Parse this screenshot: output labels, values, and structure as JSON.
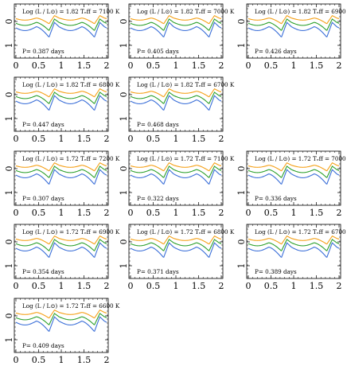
{
  "figure": {
    "series_colors": [
      "#f5a21b",
      "#2ca02c",
      "#3b6fd8"
    ],
    "tick_color": "#000000"
  },
  "chart_data": [
    {
      "type": "line",
      "title": "Log (L / L⊙) = 1.82 Tₑff = 7100 K",
      "period_label": "P= 0.387 days",
      "xlim": [
        0,
        2
      ],
      "xticks": [
        "0",
        "0.5",
        "1",
        "1.5",
        "2"
      ],
      "ylim_inverted": true,
      "yticks": [
        "0",
        "1"
      ]
    },
    {
      "type": "line",
      "title": "Log (L / L⊙) = 1.82 Tₑff = 7000 K",
      "period_label": "P= 0.405 days",
      "xlim": [
        0,
        2
      ],
      "xticks": [
        "0",
        "0.5",
        "1",
        "1.5",
        "2"
      ],
      "ylim_inverted": true,
      "yticks": [
        "0",
        "1"
      ]
    },
    {
      "type": "line",
      "title": "Log (L / L⊙) = 1.82 Tₑff = 6900 K",
      "period_label": "P= 0.426 days",
      "xlim": [
        0,
        2
      ],
      "xticks": [
        "0",
        "0.5",
        "1",
        "1.5",
        "2"
      ],
      "ylim_inverted": true,
      "yticks": [
        "0",
        "1"
      ]
    },
    {
      "type": "line",
      "title": "Log (L / L⊙) = 1.82 Tₑff = 6800 K",
      "period_label": "P= 0.447 days",
      "xlim": [
        0,
        2
      ],
      "xticks": [
        "0",
        "0.5",
        "1",
        "1.5",
        "2"
      ],
      "ylim_inverted": true,
      "yticks": [
        "0",
        "1"
      ]
    },
    {
      "type": "line",
      "title": "Log (L / L⊙) = 1.82 Tₑff = 6700 K",
      "period_label": "P= 0.468 days",
      "xlim": [
        0,
        2
      ],
      "xticks": [
        "0",
        "0.5",
        "1",
        "1.5",
        "2"
      ],
      "ylim_inverted": true,
      "yticks": [
        "0",
        "1"
      ]
    },
    {
      "type": "line",
      "title": "Log (L / L⊙) = 1.72 Tₑff = 7200 K",
      "period_label": "P= 0.307 days",
      "xlim": [
        0,
        2
      ],
      "xticks": [
        "0",
        "0.5",
        "1",
        "1.5",
        "2"
      ],
      "ylim_inverted": true,
      "yticks": [
        "0",
        "1"
      ]
    },
    {
      "type": "line",
      "title": "Log (L / L⊙) = 1.72 Tₑff = 7100 K",
      "period_label": "P= 0.322 days",
      "xlim": [
        0,
        2
      ],
      "xticks": [
        "0",
        "0.5",
        "1",
        "1.5",
        "2"
      ],
      "ylim_inverted": true,
      "yticks": [
        "0",
        "1"
      ]
    },
    {
      "type": "line",
      "title": "Log (L / L⊙) = 1.72 Tₑff = 7000 K",
      "period_label": "P= 0.336 days",
      "xlim": [
        0,
        2
      ],
      "xticks": [
        "0",
        "0.5",
        "1",
        "1.5",
        "2"
      ],
      "ylim_inverted": true,
      "yticks": [
        "0",
        "1"
      ]
    },
    {
      "type": "line",
      "title": "Log (L / L⊙) = 1.72 Tₑff = 6900 K",
      "period_label": "P= 0.354 days",
      "xlim": [
        0,
        2
      ],
      "xticks": [
        "0",
        "0.5",
        "1",
        "1.5",
        "2"
      ],
      "ylim_inverted": true,
      "yticks": [
        "0",
        "1"
      ]
    },
    {
      "type": "line",
      "title": "Log (L / L⊙) = 1.72 Tₑff = 6800 K",
      "period_label": "P= 0.371 days",
      "xlim": [
        0,
        2
      ],
      "xticks": [
        "0",
        "0.5",
        "1",
        "1.5",
        "2"
      ],
      "ylim_inverted": true,
      "yticks": [
        "0",
        "1"
      ]
    },
    {
      "type": "line",
      "title": "Log (L / L⊙) = 1.72 Tₑff = 6700 K",
      "period_label": "P= 0.389 days",
      "xlim": [
        0,
        2
      ],
      "xticks": [
        "0",
        "0.5",
        "1",
        "1.5",
        "2"
      ],
      "ylim_inverted": true,
      "yticks": [
        "0",
        "1"
      ]
    },
    {
      "type": "line",
      "title": "Log (L / L⊙) = 1.72 Tₑff = 6600 K",
      "period_label": "P= 0.409 days",
      "xlim": [
        0,
        2
      ],
      "xticks": [
        "0",
        "0.5",
        "1",
        "1.5",
        "2"
      ],
      "ylim_inverted": true,
      "yticks": [
        "0",
        "1"
      ]
    }
  ]
}
